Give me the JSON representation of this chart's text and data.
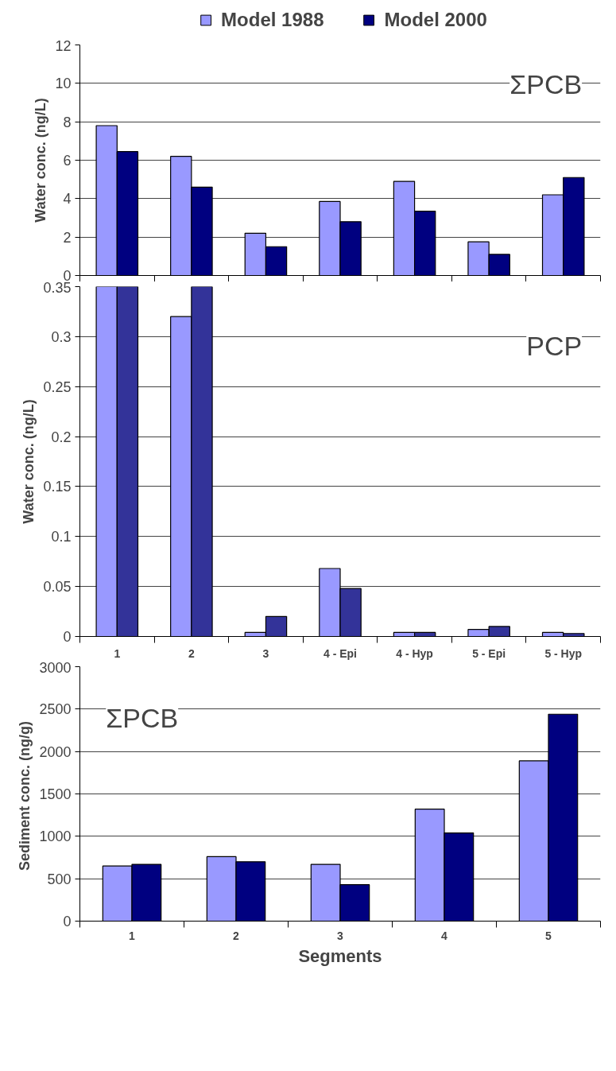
{
  "chart_data": [
    {
      "type": "bar",
      "ylabel": "Water conc. (ng/L)",
      "categories": [
        null,
        null,
        null,
        null,
        null,
        null,
        null
      ],
      "series": [
        {
          "name": "Model 1988",
          "color": "#9999ff",
          "values": [
            7.8,
            6.2,
            2.2,
            3.85,
            4.9,
            1.75,
            4.2
          ]
        },
        {
          "name": "Model 2000",
          "color": "#000080",
          "values": [
            6.45,
            4.6,
            1.5,
            2.8,
            3.35,
            1.1,
            5.1
          ]
        }
      ],
      "ylim": [
        0,
        12
      ],
      "yticks": [
        0,
        2,
        4,
        6,
        8,
        10,
        12
      ],
      "grid": "y",
      "legend": "top",
      "tick_labels": "y",
      "annotations": [
        "ΣPCB"
      ]
    },
    {
      "type": "bar",
      "ylabel": "Water conc. (ng/L)",
      "categories": [
        "1",
        "2",
        "3",
        "4 - Epi",
        "4 - Hyp",
        "5 - Epi",
        "5 - Hyp"
      ],
      "series": [
        {
          "color": "#9999ff",
          "values": [
            0.35,
            0.32,
            0.004,
            0.068,
            0.004,
            0.007,
            0.004
          ]
        },
        {
          "color": "#333399",
          "values": [
            0.35,
            0.35,
            0.02,
            0.048,
            0.004,
            0.01,
            0.003
          ]
        }
      ],
      "ylim": [
        0,
        0.35
      ],
      "yticks": [
        0,
        0.05,
        0.1,
        0.15,
        0.2,
        0.25,
        0.3,
        0.35
      ],
      "grid": "y",
      "annotations": [
        "PCP"
      ]
    },
    {
      "type": "bar",
      "xlabel": "Segments",
      "ylabel": "Sediment  conc. (ng/g)",
      "categories": [
        "1",
        "2",
        "3",
        "4",
        "5"
      ],
      "series": [
        {
          "color": "#9999ff",
          "values": [
            650,
            760,
            670,
            1320,
            1890
          ]
        },
        {
          "color": "#000080",
          "values": [
            670,
            700,
            430,
            1040,
            2440
          ]
        }
      ],
      "ylim": [
        0,
        3000
      ],
      "yticks": [
        0,
        500,
        1000,
        1500,
        2000,
        2500,
        3000
      ],
      "grid": "y",
      "annotations": [
        "ΣPCB"
      ]
    }
  ]
}
